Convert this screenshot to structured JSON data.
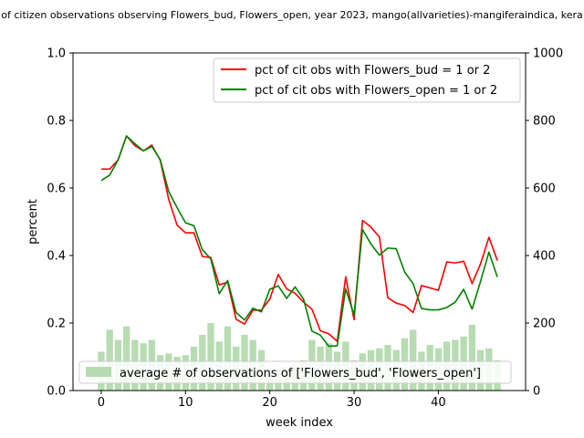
{
  "chart_data": {
    "type": "bar+line",
    "title": "of citizen observations observing Flowers_bud, Flowers_open, year 2023, mango(allvarieties)-mangiferaindica, kera",
    "xlabel": "week index",
    "ylabel": "percent",
    "y2label": "",
    "xlim": [
      -3.35,
      50.35
    ],
    "ylim": [
      0,
      1
    ],
    "y2lim": [
      0,
      1000
    ],
    "x_ticks": [
      0,
      10,
      20,
      30,
      40
    ],
    "y_ticks": [
      "0.0",
      "0.2",
      "0.4",
      "0.6",
      "0.8",
      "1.0"
    ],
    "y2_ticks": [
      "0",
      "200",
      "400",
      "600",
      "800",
      "1000"
    ],
    "x": [
      0,
      1,
      2,
      3,
      4,
      5,
      6,
      7,
      8,
      9,
      10,
      11,
      12,
      13,
      14,
      15,
      16,
      17,
      18,
      19,
      20,
      21,
      22,
      23,
      24,
      25,
      26,
      27,
      28,
      29,
      30,
      31,
      32,
      33,
      34,
      35,
      36,
      37,
      38,
      39,
      40,
      41,
      42,
      43,
      44,
      45,
      46,
      47
    ],
    "bars": {
      "name": "average # of observations of ['Flowers_bud', 'Flowers_open']",
      "color": "#b7dcb2",
      "axis": "right",
      "values": [
        115,
        180,
        150,
        190,
        150,
        140,
        150,
        105,
        110,
        100,
        105,
        130,
        165,
        200,
        145,
        190,
        130,
        165,
        150,
        120,
        60,
        60,
        70,
        80,
        90,
        150,
        130,
        140,
        115,
        145,
        90,
        110,
        120,
        125,
        135,
        120,
        155,
        180,
        115,
        135,
        125,
        145,
        150,
        160,
        195,
        120,
        125,
        90
      ]
    },
    "series": [
      {
        "name": "pct of cit obs with Flowers_bud = 1 or 2",
        "color": "#ff0000",
        "axis": "left",
        "values": [
          0.656,
          0.656,
          0.683,
          0.754,
          0.725,
          0.71,
          0.727,
          0.682,
          0.567,
          0.49,
          0.467,
          0.467,
          0.397,
          0.394,
          0.313,
          0.321,
          0.211,
          0.197,
          0.238,
          0.238,
          0.271,
          0.344,
          0.301,
          0.288,
          0.262,
          0.241,
          0.177,
          0.168,
          0.146,
          0.337,
          0.21,
          0.504,
          0.484,
          0.455,
          0.275,
          0.259,
          0.252,
          0.231,
          0.311,
          0.304,
          0.297,
          0.381,
          0.378,
          0.383,
          0.317,
          0.375,
          0.454,
          0.385
        ]
      },
      {
        "name": "pct of cit obs with Flowers_open = 1 or 2",
        "color": "#008000",
        "axis": "left",
        "values": [
          0.622,
          0.638,
          0.683,
          0.754,
          0.731,
          0.71,
          0.723,
          0.684,
          0.59,
          0.542,
          0.497,
          0.488,
          0.417,
          0.39,
          0.287,
          0.326,
          0.231,
          0.209,
          0.244,
          0.233,
          0.3,
          0.31,
          0.273,
          0.307,
          0.271,
          0.176,
          0.164,
          0.131,
          0.133,
          0.301,
          0.224,
          0.477,
          0.434,
          0.401,
          0.422,
          0.42,
          0.351,
          0.317,
          0.243,
          0.239,
          0.239,
          0.246,
          0.262,
          0.3,
          0.241,
          0.323,
          0.41,
          0.336
        ]
      }
    ],
    "legend_upper": "top-right",
    "legend_lower": "bottom"
  }
}
